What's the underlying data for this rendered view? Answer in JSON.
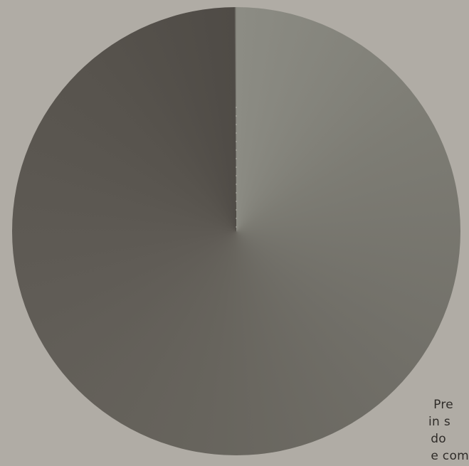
{
  "caption": {
    "lines": [
      "Pre",
      "in s",
      "do",
      "e com"
    ]
  },
  "colors": {
    "background": "#b0aca5",
    "disc_light": "#8c8c84",
    "disc_dark": "#4f4b46",
    "text": "#2f2c29"
  }
}
